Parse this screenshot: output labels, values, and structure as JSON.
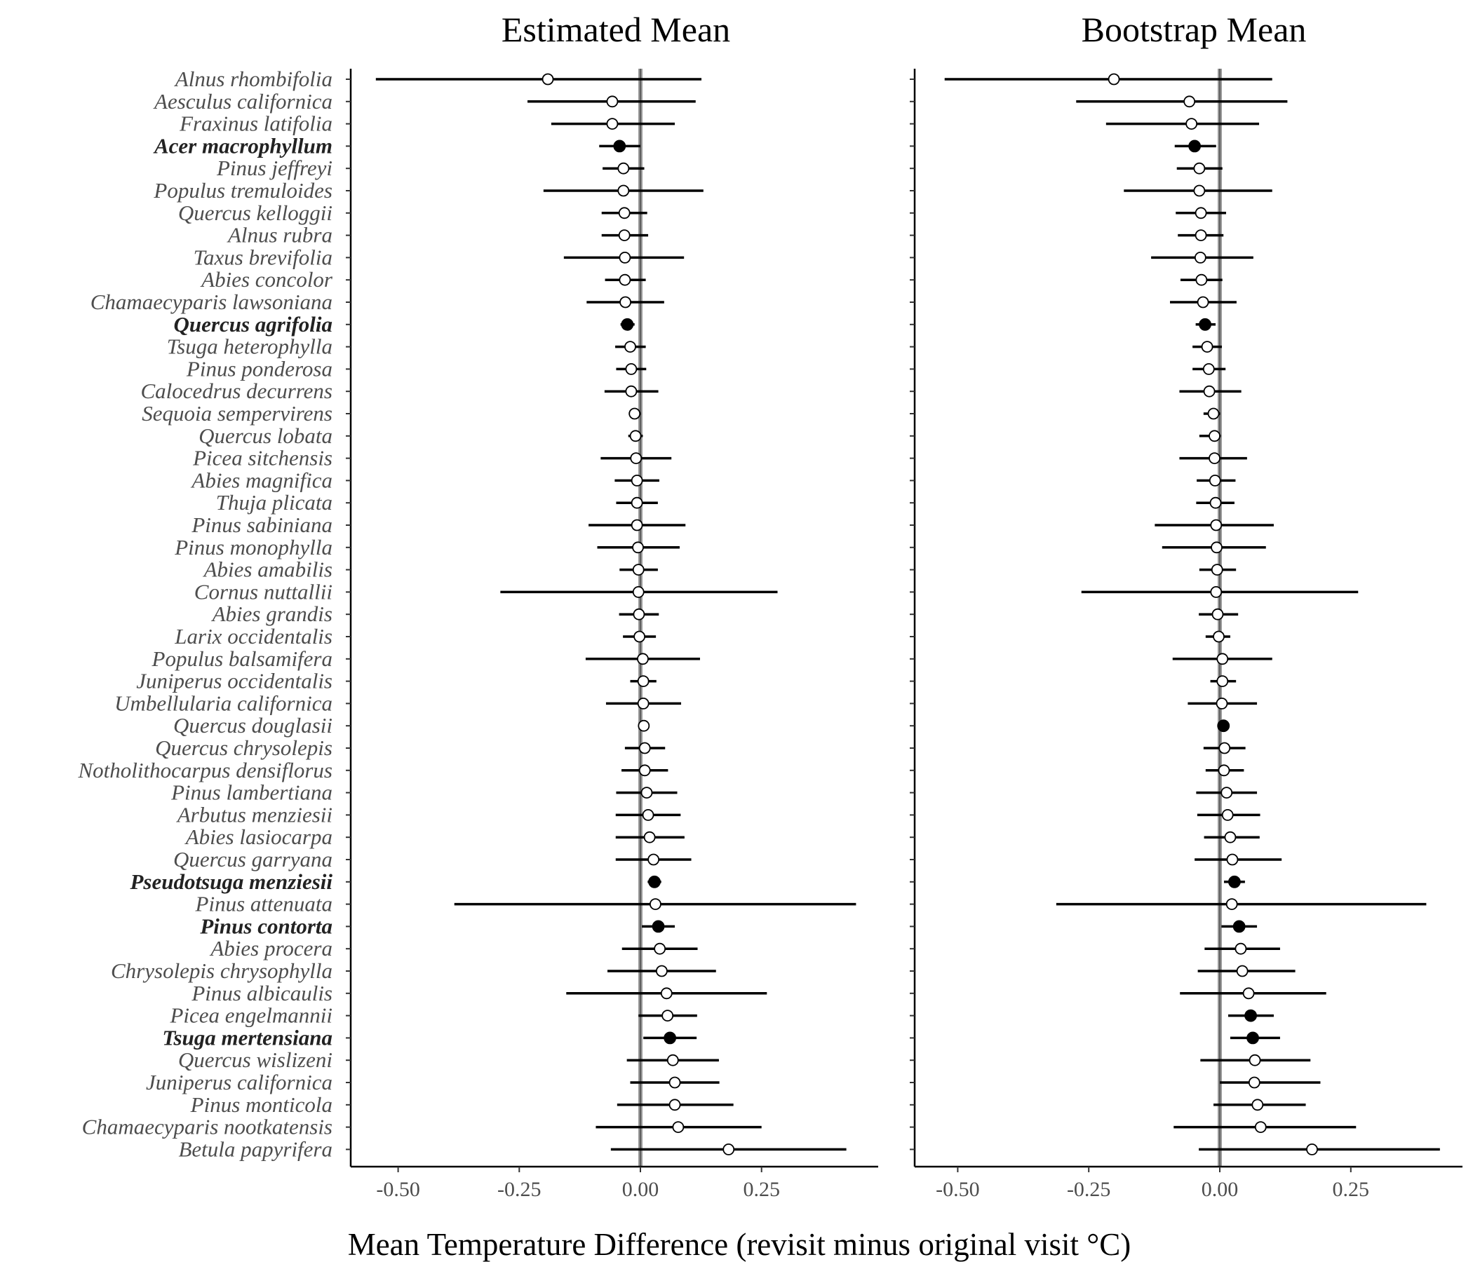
{
  "chart_data": {
    "type": "scatter",
    "xlabel": "Mean Temperature Difference (revisit minus original visit °C)",
    "ylabel": "",
    "xlim": [
      -0.6,
      0.47
    ],
    "x_ticks": [
      -0.5,
      -0.25,
      0.0,
      0.25
    ],
    "x_tick_labels": [
      "-0.50",
      "-0.25",
      "0.00",
      "0.25"
    ],
    "reference_line": 0.0,
    "colors": {
      "open_point": "#ffffff",
      "filled_point": "#000000",
      "line": "#000000",
      "reference": "#999999",
      "label": "#4d4d4d"
    },
    "species": [
      {
        "name": "Alnus  rhombifolia",
        "bold": false
      },
      {
        "name": "Aesculus  californica",
        "bold": false
      },
      {
        "name": "Fraxinus  latifolia",
        "bold": false
      },
      {
        "name": "Acer macrophyllum",
        "bold": true
      },
      {
        "name": "Pinus  jeffreyi",
        "bold": false
      },
      {
        "name": "Populus  tremuloides",
        "bold": false
      },
      {
        "name": "Quercus  kelloggii",
        "bold": false
      },
      {
        "name": "Alnus  rubra",
        "bold": false
      },
      {
        "name": "Taxus  brevifolia",
        "bold": false
      },
      {
        "name": "Abies  concolor",
        "bold": false
      },
      {
        "name": "Chamaecyparis  lawsoniana",
        "bold": false
      },
      {
        "name": "Quercus agrifolia",
        "bold": true
      },
      {
        "name": "Tsuga  heterophylla",
        "bold": false
      },
      {
        "name": "Pinus  ponderosa",
        "bold": false
      },
      {
        "name": "Calocedrus  decurrens",
        "bold": false
      },
      {
        "name": "Sequoia  sempervirens",
        "bold": false
      },
      {
        "name": "Quercus  lobata",
        "bold": false
      },
      {
        "name": "Picea  sitchensis",
        "bold": false
      },
      {
        "name": "Abies  magnifica",
        "bold": false
      },
      {
        "name": "Thuja  plicata",
        "bold": false
      },
      {
        "name": "Pinus  sabiniana",
        "bold": false
      },
      {
        "name": "Pinus  monophylla",
        "bold": false
      },
      {
        "name": "Abies  amabilis",
        "bold": false
      },
      {
        "name": "Cornus  nuttallii",
        "bold": false
      },
      {
        "name": "Abies  grandis",
        "bold": false
      },
      {
        "name": "Larix  occidentalis",
        "bold": false
      },
      {
        "name": "Populus  balsamifera",
        "bold": false
      },
      {
        "name": "Juniperus  occidentalis",
        "bold": false
      },
      {
        "name": "Umbellularia  californica",
        "bold": false
      },
      {
        "name": "Quercus  douglasii",
        "bold": false
      },
      {
        "name": "Quercus  chrysolepis",
        "bold": false
      },
      {
        "name": "Notholithocarpus  densiflorus",
        "bold": false
      },
      {
        "name": "Pinus  lambertiana",
        "bold": false
      },
      {
        "name": "Arbutus  menziesii",
        "bold": false
      },
      {
        "name": "Abies  lasiocarpa",
        "bold": false
      },
      {
        "name": "Quercus  garryana",
        "bold": false
      },
      {
        "name": "Pseudotsuga  menziesii",
        "bold": true
      },
      {
        "name": "Pinus  attenuata",
        "bold": false
      },
      {
        "name": "Pinus contorta",
        "bold": true
      },
      {
        "name": "Abies  procera",
        "bold": false
      },
      {
        "name": "Chrysolepis  chrysophylla",
        "bold": false
      },
      {
        "name": "Pinus  albicaulis",
        "bold": false
      },
      {
        "name": "Picea  engelmannii",
        "bold": false
      },
      {
        "name": "Tsuga mertensiana",
        "bold": true
      },
      {
        "name": "Quercus  wislizeni",
        "bold": false
      },
      {
        "name": "Juniperus  californica",
        "bold": false
      },
      {
        "name": "Pinus  monticola",
        "bold": false
      },
      {
        "name": "Chamaecyparis  nootkatensis",
        "bold": false
      },
      {
        "name": "Betula  papyrifera",
        "bold": false
      }
    ],
    "panels": [
      {
        "title": "Estimated Mean",
        "points": [
          {
            "mean": -0.191,
            "lo": -0.546,
            "hi": 0.126,
            "filled": false
          },
          {
            "mean": -0.058,
            "lo": -0.233,
            "hi": 0.114,
            "filled": false
          },
          {
            "mean": -0.058,
            "lo": -0.184,
            "hi": 0.071,
            "filled": false
          },
          {
            "mean": -0.043,
            "lo": -0.085,
            "hi": 0.0,
            "filled": true
          },
          {
            "mean": -0.035,
            "lo": -0.078,
            "hi": 0.008,
            "filled": false
          },
          {
            "mean": -0.035,
            "lo": -0.2,
            "hi": 0.13,
            "filled": false
          },
          {
            "mean": -0.033,
            "lo": -0.08,
            "hi": 0.014,
            "filled": false
          },
          {
            "mean": -0.033,
            "lo": -0.08,
            "hi": 0.016,
            "filled": false
          },
          {
            "mean": -0.032,
            "lo": -0.158,
            "hi": 0.09,
            "filled": false
          },
          {
            "mean": -0.032,
            "lo": -0.073,
            "hi": 0.011,
            "filled": false
          },
          {
            "mean": -0.031,
            "lo": -0.111,
            "hi": 0.049,
            "filled": false
          },
          {
            "mean": -0.027,
            "lo": -0.041,
            "hi": -0.012,
            "filled": true
          },
          {
            "mean": -0.021,
            "lo": -0.052,
            "hi": 0.011,
            "filled": false
          },
          {
            "mean": -0.019,
            "lo": -0.05,
            "hi": 0.012,
            "filled": false
          },
          {
            "mean": -0.019,
            "lo": -0.074,
            "hi": 0.037,
            "filled": false
          },
          {
            "mean": -0.012,
            "lo": -0.024,
            "hi": 0.001,
            "filled": false
          },
          {
            "mean": -0.01,
            "lo": -0.025,
            "hi": 0.005,
            "filled": false
          },
          {
            "mean": -0.009,
            "lo": -0.082,
            "hi": 0.064,
            "filled": false
          },
          {
            "mean": -0.007,
            "lo": -0.053,
            "hi": 0.039,
            "filled": false
          },
          {
            "mean": -0.007,
            "lo": -0.05,
            "hi": 0.036,
            "filled": false
          },
          {
            "mean": -0.007,
            "lo": -0.107,
            "hi": 0.093,
            "filled": false
          },
          {
            "mean": -0.005,
            "lo": -0.089,
            "hi": 0.081,
            "filled": false
          },
          {
            "mean": -0.004,
            "lo": -0.043,
            "hi": 0.036,
            "filled": false
          },
          {
            "mean": -0.004,
            "lo": -0.289,
            "hi": 0.283,
            "filled": false
          },
          {
            "mean": -0.003,
            "lo": -0.044,
            "hi": 0.038,
            "filled": false
          },
          {
            "mean": -0.002,
            "lo": -0.036,
            "hi": 0.032,
            "filled": false
          },
          {
            "mean": 0.005,
            "lo": -0.113,
            "hi": 0.123,
            "filled": false
          },
          {
            "mean": 0.006,
            "lo": -0.021,
            "hi": 0.033,
            "filled": false
          },
          {
            "mean": 0.006,
            "lo": -0.071,
            "hi": 0.084,
            "filled": false
          },
          {
            "mean": 0.007,
            "lo": 0.007,
            "hi": 0.007,
            "filled": false
          },
          {
            "mean": 0.009,
            "lo": -0.032,
            "hi": 0.051,
            "filled": false
          },
          {
            "mean": 0.009,
            "lo": -0.039,
            "hi": 0.057,
            "filled": false
          },
          {
            "mean": 0.013,
            "lo": -0.05,
            "hi": 0.076,
            "filled": false
          },
          {
            "mean": 0.016,
            "lo": -0.051,
            "hi": 0.083,
            "filled": false
          },
          {
            "mean": 0.019,
            "lo": -0.051,
            "hi": 0.091,
            "filled": false
          },
          {
            "mean": 0.027,
            "lo": -0.051,
            "hi": 0.105,
            "filled": false
          },
          {
            "mean": 0.029,
            "lo": 0.015,
            "hi": 0.043,
            "filled": true
          },
          {
            "mean": 0.031,
            "lo": -0.384,
            "hi": 0.445,
            "filled": false
          },
          {
            "mean": 0.037,
            "lo": 0.003,
            "hi": 0.071,
            "filled": true
          },
          {
            "mean": 0.04,
            "lo": -0.038,
            "hi": 0.118,
            "filled": false
          },
          {
            "mean": 0.044,
            "lo": -0.068,
            "hi": 0.156,
            "filled": false
          },
          {
            "mean": 0.054,
            "lo": -0.153,
            "hi": 0.261,
            "filled": false
          },
          {
            "mean": 0.056,
            "lo": -0.004,
            "hi": 0.117,
            "filled": false
          },
          {
            "mean": 0.061,
            "lo": 0.006,
            "hi": 0.116,
            "filled": true
          },
          {
            "mean": 0.067,
            "lo": -0.028,
            "hi": 0.162,
            "filled": false
          },
          {
            "mean": 0.071,
            "lo": -0.021,
            "hi": 0.163,
            "filled": false
          },
          {
            "mean": 0.071,
            "lo": -0.048,
            "hi": 0.192,
            "filled": false
          },
          {
            "mean": 0.078,
            "lo": -0.092,
            "hi": 0.25,
            "filled": false
          },
          {
            "mean": 0.182,
            "lo": -0.061,
            "hi": 0.425,
            "filled": false
          }
        ]
      },
      {
        "title": "Bootstrap Mean",
        "points": [
          {
            "mean": -0.202,
            "lo": -0.525,
            "hi": 0.1,
            "filled": false
          },
          {
            "mean": -0.058,
            "lo": -0.274,
            "hi": 0.129,
            "filled": false
          },
          {
            "mean": -0.054,
            "lo": -0.217,
            "hi": 0.075,
            "filled": false
          },
          {
            "mean": -0.048,
            "lo": -0.086,
            "hi": -0.007,
            "filled": true
          },
          {
            "mean": -0.039,
            "lo": -0.082,
            "hi": 0.005,
            "filled": false
          },
          {
            "mean": -0.039,
            "lo": -0.183,
            "hi": 0.1,
            "filled": false
          },
          {
            "mean": -0.036,
            "lo": -0.084,
            "hi": 0.012,
            "filled": false
          },
          {
            "mean": -0.036,
            "lo": -0.08,
            "hi": 0.007,
            "filled": false
          },
          {
            "mean": -0.037,
            "lo": -0.131,
            "hi": 0.064,
            "filled": false
          },
          {
            "mean": -0.035,
            "lo": -0.075,
            "hi": 0.005,
            "filled": false
          },
          {
            "mean": -0.032,
            "lo": -0.095,
            "hi": 0.032,
            "filled": false
          },
          {
            "mean": -0.028,
            "lo": -0.046,
            "hi": -0.008,
            "filled": true
          },
          {
            "mean": -0.024,
            "lo": -0.052,
            "hi": 0.004,
            "filled": false
          },
          {
            "mean": -0.021,
            "lo": -0.052,
            "hi": 0.011,
            "filled": false
          },
          {
            "mean": -0.02,
            "lo": -0.077,
            "hi": 0.041,
            "filled": false
          },
          {
            "mean": -0.012,
            "lo": -0.031,
            "hi": 0.001,
            "filled": false
          },
          {
            "mean": -0.01,
            "lo": -0.039,
            "hi": 0.002,
            "filled": false
          },
          {
            "mean": -0.01,
            "lo": -0.077,
            "hi": 0.052,
            "filled": false
          },
          {
            "mean": -0.009,
            "lo": -0.044,
            "hi": 0.03,
            "filled": false
          },
          {
            "mean": -0.008,
            "lo": -0.045,
            "hi": 0.028,
            "filled": false
          },
          {
            "mean": -0.007,
            "lo": -0.124,
            "hi": 0.103,
            "filled": false
          },
          {
            "mean": -0.006,
            "lo": -0.11,
            "hi": 0.088,
            "filled": false
          },
          {
            "mean": -0.005,
            "lo": -0.039,
            "hi": 0.031,
            "filled": false
          },
          {
            "mean": -0.007,
            "lo": -0.264,
            "hi": 0.264,
            "filled": false
          },
          {
            "mean": -0.004,
            "lo": -0.04,
            "hi": 0.035,
            "filled": false
          },
          {
            "mean": -0.002,
            "lo": -0.027,
            "hi": 0.02,
            "filled": false
          },
          {
            "mean": 0.005,
            "lo": -0.09,
            "hi": 0.1,
            "filled": false
          },
          {
            "mean": 0.005,
            "lo": -0.018,
            "hi": 0.031,
            "filled": false
          },
          {
            "mean": 0.004,
            "lo": -0.061,
            "hi": 0.071,
            "filled": false
          },
          {
            "mean": 0.007,
            "lo": 0.001,
            "hi": 0.01,
            "filled": true
          },
          {
            "mean": 0.009,
            "lo": -0.031,
            "hi": 0.049,
            "filled": false
          },
          {
            "mean": 0.008,
            "lo": -0.027,
            "hi": 0.046,
            "filled": false
          },
          {
            "mean": 0.013,
            "lo": -0.045,
            "hi": 0.071,
            "filled": false
          },
          {
            "mean": 0.015,
            "lo": -0.043,
            "hi": 0.077,
            "filled": false
          },
          {
            "mean": 0.02,
            "lo": -0.03,
            "hi": 0.076,
            "filled": false
          },
          {
            "mean": 0.024,
            "lo": -0.048,
            "hi": 0.118,
            "filled": false
          },
          {
            "mean": 0.028,
            "lo": 0.008,
            "hi": 0.048,
            "filled": true
          },
          {
            "mean": 0.023,
            "lo": -0.312,
            "hi": 0.394,
            "filled": false
          },
          {
            "mean": 0.037,
            "lo": 0.003,
            "hi": 0.071,
            "filled": true
          },
          {
            "mean": 0.04,
            "lo": -0.029,
            "hi": 0.115,
            "filled": false
          },
          {
            "mean": 0.043,
            "lo": -0.042,
            "hi": 0.144,
            "filled": false
          },
          {
            "mean": 0.055,
            "lo": -0.076,
            "hi": 0.203,
            "filled": false
          },
          {
            "mean": 0.059,
            "lo": 0.016,
            "hi": 0.103,
            "filled": true
          },
          {
            "mean": 0.063,
            "lo": 0.02,
            "hi": 0.115,
            "filled": true
          },
          {
            "mean": 0.067,
            "lo": -0.037,
            "hi": 0.173,
            "filled": false
          },
          {
            "mean": 0.066,
            "lo": 0.0,
            "hi": 0.192,
            "filled": false
          },
          {
            "mean": 0.072,
            "lo": -0.012,
            "hi": 0.164,
            "filled": false
          },
          {
            "mean": 0.078,
            "lo": -0.088,
            "hi": 0.26,
            "filled": false
          },
          {
            "mean": 0.176,
            "lo": -0.04,
            "hi": 0.42,
            "filled": false
          }
        ]
      }
    ]
  }
}
